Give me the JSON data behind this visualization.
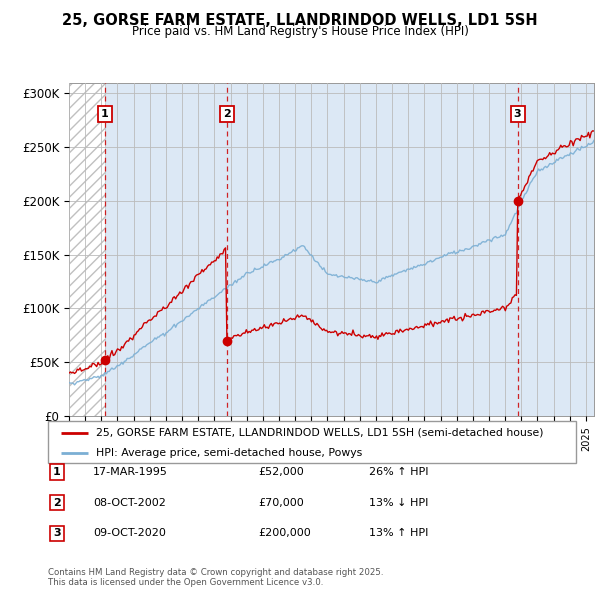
{
  "title_line1": "25, GORSE FARM ESTATE, LLANDRINDOD WELLS, LD1 5SH",
  "title_line2": "Price paid vs. HM Land Registry's House Price Index (HPI)",
  "xlim_start": 1993.0,
  "xlim_end": 2025.5,
  "ylim": [
    0,
    310000
  ],
  "yticks": [
    0,
    50000,
    100000,
    150000,
    200000,
    250000,
    300000
  ],
  "ytick_labels": [
    "£0",
    "£50K",
    "£100K",
    "£150K",
    "£200K",
    "£250K",
    "£300K"
  ],
  "sale_color": "#cc0000",
  "hpi_color": "#7bafd4",
  "transaction_dates": [
    1995.21,
    2002.77,
    2020.77
  ],
  "transaction_prices": [
    52000,
    70000,
    200000
  ],
  "transaction_labels": [
    "1",
    "2",
    "3"
  ],
  "legend_sale_label": "25, GORSE FARM ESTATE, LLANDRINDOD WELLS, LD1 5SH (semi-detached house)",
  "legend_hpi_label": "HPI: Average price, semi-detached house, Powys",
  "table_rows": [
    {
      "num": "1",
      "date": "17-MAR-1995",
      "price": "£52,000",
      "change": "26% ↑ HPI"
    },
    {
      "num": "2",
      "date": "08-OCT-2002",
      "price": "£70,000",
      "change": "13% ↓ HPI"
    },
    {
      "num": "3",
      "date": "09-OCT-2020",
      "price": "£200,000",
      "change": "13% ↑ HPI"
    }
  ],
  "footer_text": "Contains HM Land Registry data © Crown copyright and database right 2025.\nThis data is licensed under the Open Government Licence v3.0.",
  "plot_bg_color": "#dce8f5",
  "hatch_bg_color": "#ffffff",
  "grid_color": "#bbbbbb"
}
